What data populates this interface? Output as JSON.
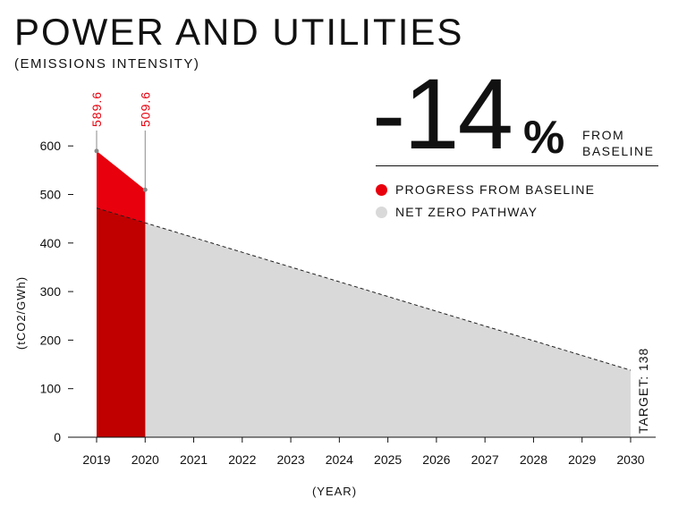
{
  "header": {
    "title": "POWER AND UTILITIES",
    "subtitle": "(EMISSIONS INTENSITY)"
  },
  "stat": {
    "value": "-14",
    "unit": "%",
    "caption_line1": "FROM",
    "caption_line2": "BASELINE"
  },
  "legend": [
    {
      "label": "PROGRESS FROM BASELINE",
      "color": "#e8000d"
    },
    {
      "label": "NET ZERO PATHWAY",
      "color": "#d9d9d9"
    }
  ],
  "chart_data": {
    "type": "area",
    "title": "POWER AND UTILITIES",
    "subtitle": "(EMISSIONS INTENSITY)",
    "xlabel": "(YEAR)",
    "ylabel": "(tCO2/GWh)",
    "x": [
      2019,
      2020,
      2021,
      2022,
      2023,
      2024,
      2025,
      2026,
      2027,
      2028,
      2029,
      2030
    ],
    "yticks": [
      0,
      100,
      200,
      300,
      400,
      500,
      600
    ],
    "ylim": [
      0,
      600
    ],
    "grid": false,
    "series": [
      {
        "name": "PROGRESS FROM BASELINE",
        "x": [
          2019,
          2020
        ],
        "y": [
          589.6,
          509.6
        ],
        "color": "#e8000d"
      },
      {
        "name": "NET ZERO PATHWAY",
        "x": [
          2019,
          2030
        ],
        "y": [
          472,
          138
        ],
        "color": "#d9d9d9"
      }
    ],
    "annotations": [
      {
        "x": 2019,
        "y": 589.6,
        "text": "589.6"
      },
      {
        "x": 2020,
        "y": 509.6,
        "text": "509.6"
      },
      {
        "x": 2030,
        "y": 138,
        "text": "TARGET: 138"
      }
    ],
    "colors": {
      "progress": "#e8000d",
      "progress_overlap": "#c00000",
      "pathway": "#d9d9d9",
      "annotation": "#e8000d",
      "axis": "#111111"
    }
  }
}
